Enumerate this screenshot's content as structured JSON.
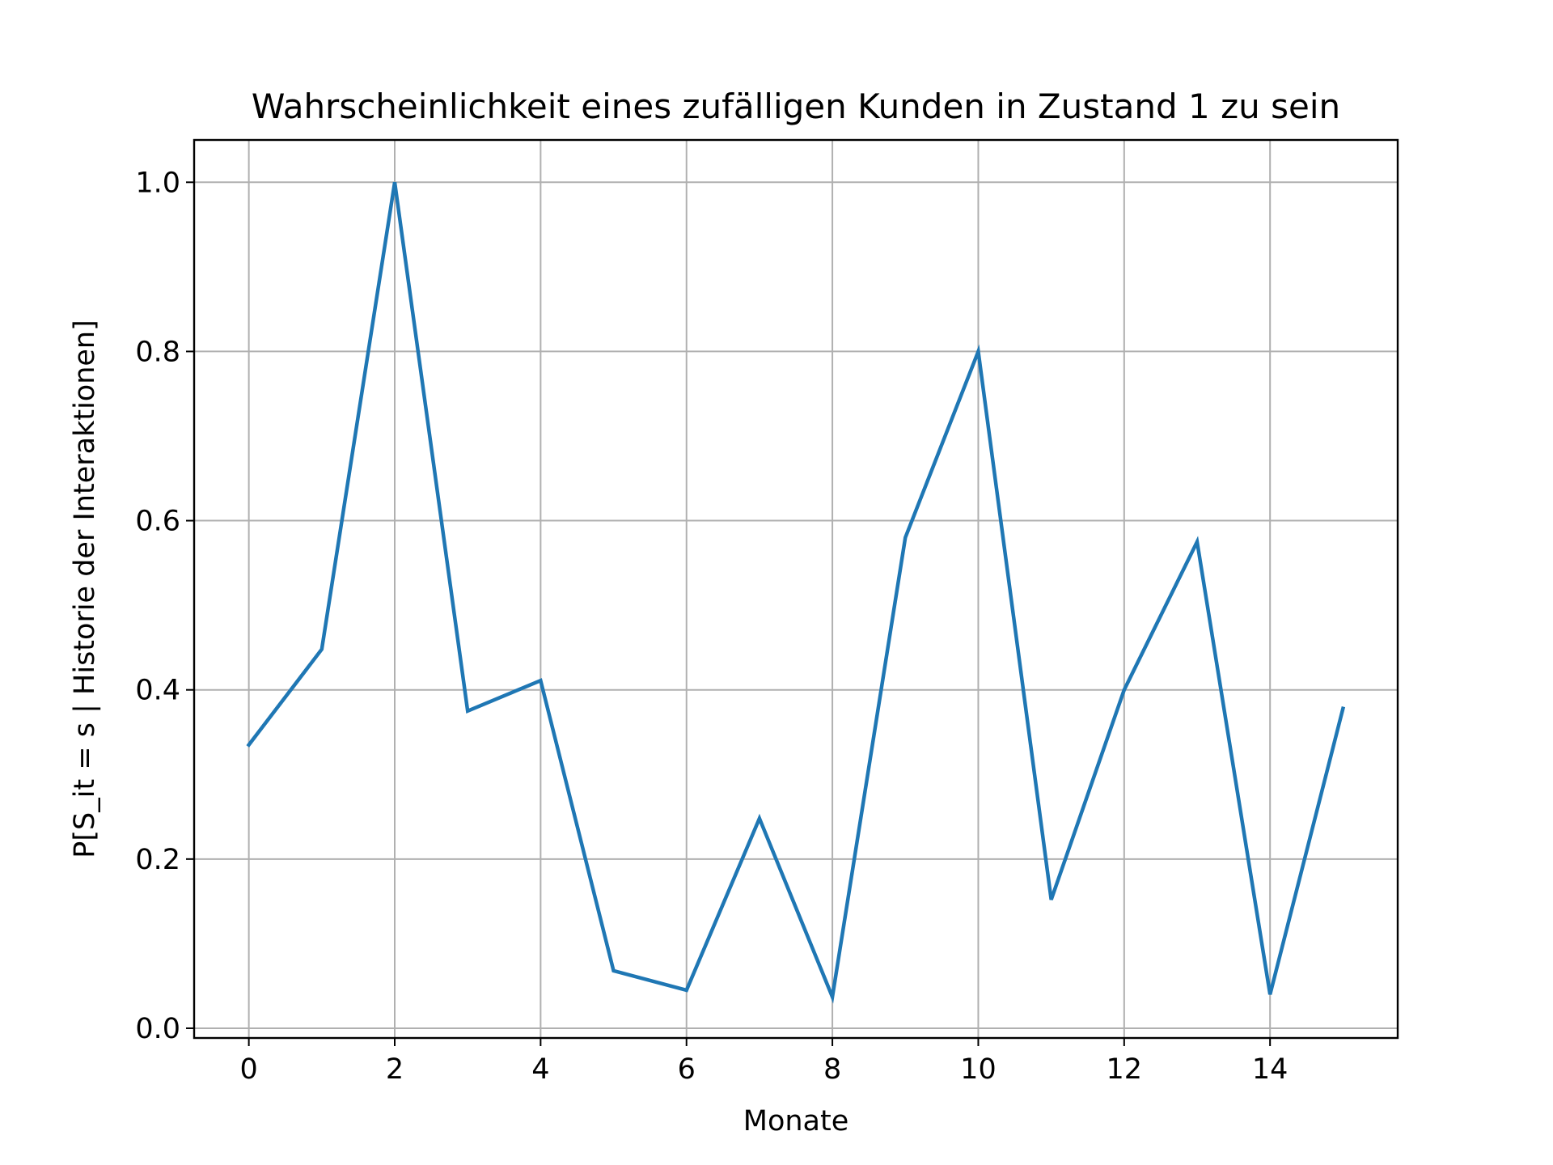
{
  "chart_data": {
    "type": "line",
    "title": "Wahrscheinlichkeit eines zufälligen Kunden in Zustand 1 zu sein",
    "xlabel": "Monate",
    "ylabel": "P[S_it = s | Historie der Interaktionen]",
    "x": [
      0,
      1,
      2,
      3,
      4,
      5,
      6,
      7,
      8,
      9,
      10,
      11,
      12,
      13,
      14,
      15
    ],
    "series": [
      {
        "values": [
          0.335,
          0.448,
          1.0,
          0.375,
          0.411,
          0.068,
          0.045,
          0.248,
          0.037,
          0.58,
          0.8,
          0.152,
          0.4,
          0.575,
          0.04,
          0.378
        ],
        "color": "#1f77b4"
      }
    ],
    "xlim": [
      -0.75,
      15.75
    ],
    "ylim": [
      -0.0115,
      1.05
    ],
    "xticks": [
      0,
      2,
      4,
      6,
      8,
      10,
      12,
      14
    ],
    "yticks": [
      0.0,
      0.2,
      0.4,
      0.6,
      0.8,
      1.0
    ],
    "xtick_labels": [
      "0",
      "2",
      "4",
      "6",
      "8",
      "10",
      "12",
      "14"
    ],
    "ytick_labels": [
      "0.0",
      "0.2",
      "0.4",
      "0.6",
      "0.8",
      "1.0"
    ],
    "grid": true,
    "legend": "none"
  }
}
